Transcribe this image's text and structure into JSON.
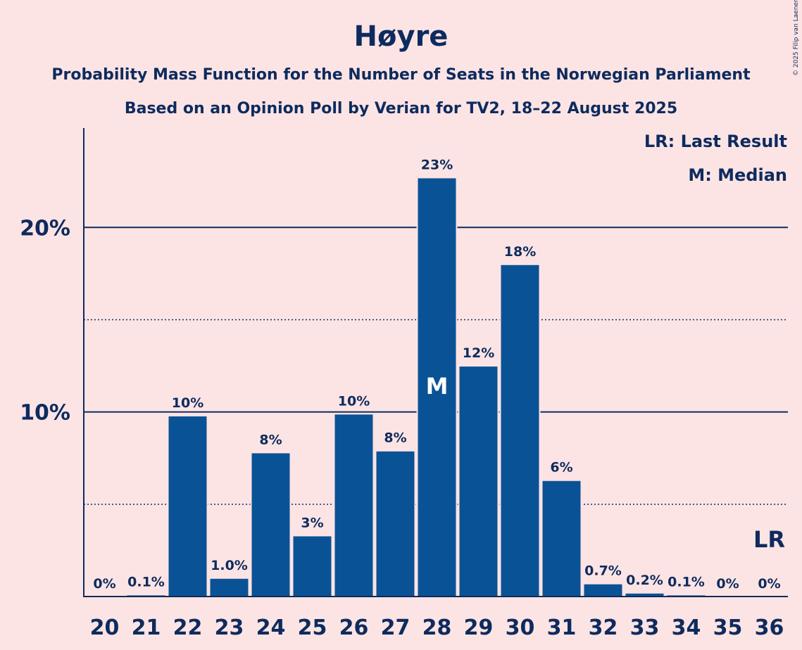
{
  "chart_data": {
    "type": "bar",
    "title": "Høyre",
    "subtitle_lines": [
      "Probability Mass Function for the Number of Seats in the Norwegian Parliament",
      "Based on an Opinion Poll by Verian for TV2, 18–22 August 2025"
    ],
    "categories": [
      "20",
      "21",
      "22",
      "23",
      "24",
      "25",
      "26",
      "27",
      "28",
      "29",
      "30",
      "31",
      "32",
      "33",
      "34",
      "35",
      "36"
    ],
    "values": [
      0,
      0.1,
      9.8,
      1.0,
      7.8,
      3.3,
      9.9,
      7.9,
      22.7,
      12.5,
      18.0,
      6.3,
      0.7,
      0.2,
      0.1,
      0,
      0
    ],
    "value_labels": [
      "0%",
      "0.1%",
      "10%",
      "1.0%",
      "8%",
      "3%",
      "10%",
      "8%",
      "23%",
      "12%",
      "18%",
      "6%",
      "0.7%",
      "0.2%",
      "0.1%",
      "0%",
      "0%"
    ],
    "y_ticks": [
      {
        "value": 10,
        "label": "10%"
      },
      {
        "value": 20,
        "label": "20%"
      }
    ],
    "minor_gridlines": [
      5,
      15
    ],
    "ylim": [
      0,
      24.7
    ],
    "median_category": "28",
    "median_marker": "M",
    "last_result_category": "36",
    "last_result_marker": "LR",
    "legend": [
      "LR: Last Result",
      "M: Median"
    ],
    "legend_position": "top-right",
    "bar_color": "#0a5296",
    "copyright": "© 2025 Filip van Laenen"
  }
}
